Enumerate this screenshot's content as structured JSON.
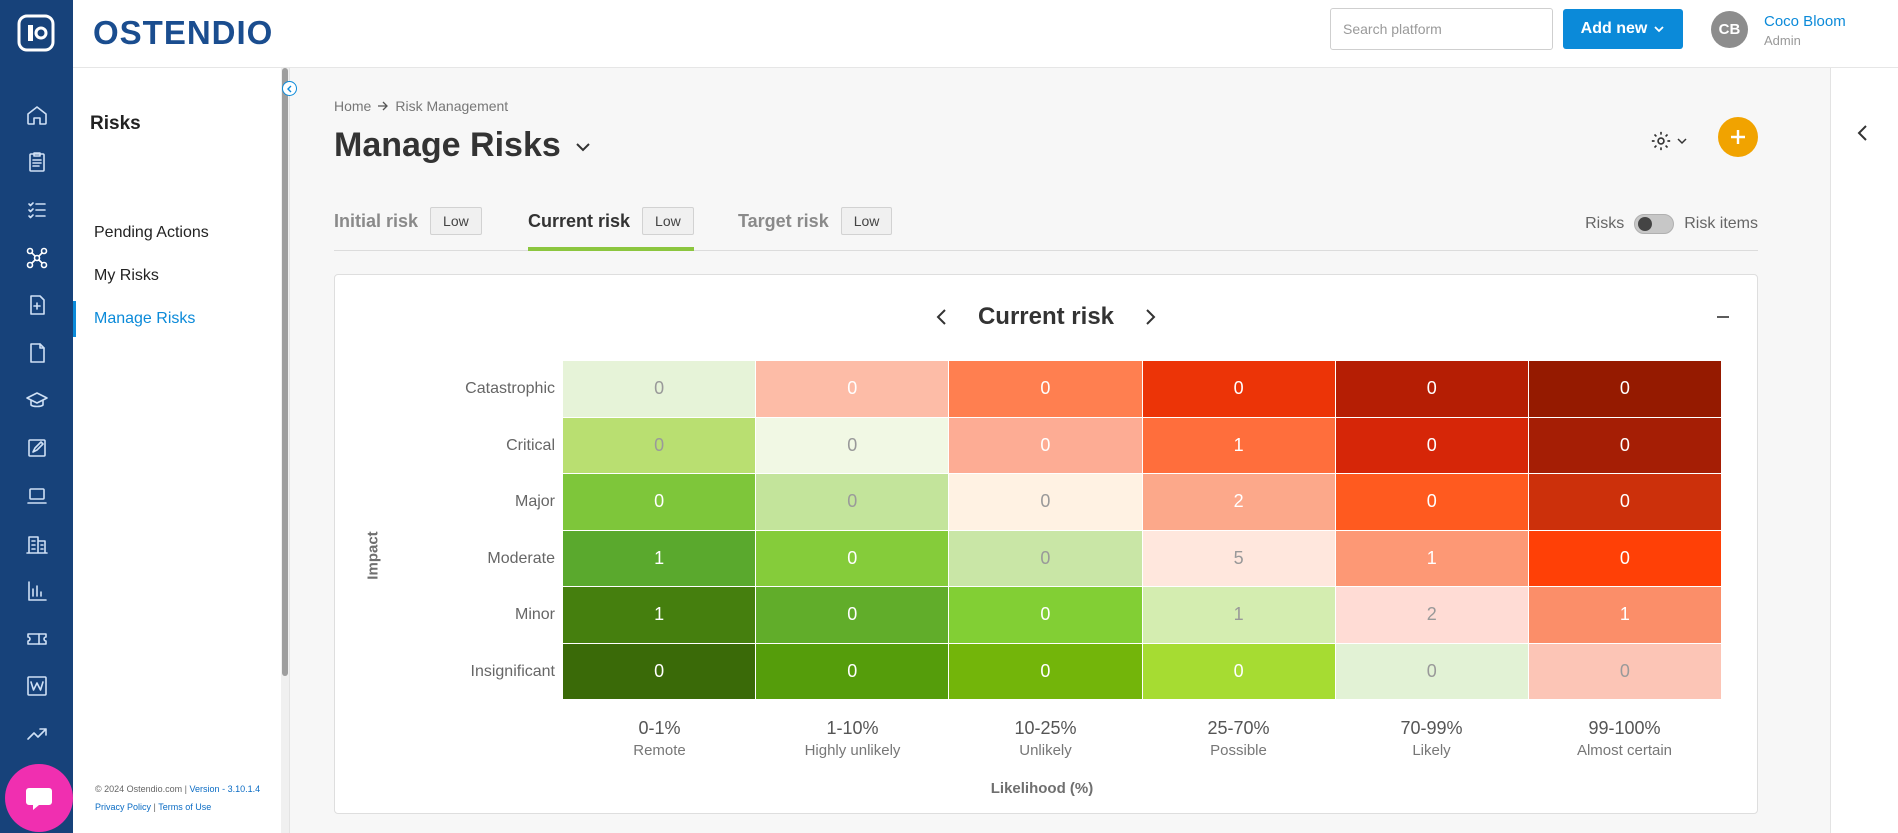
{
  "app": {
    "brand": "OSTENDIO"
  },
  "topbar": {
    "search_placeholder": "Search platform",
    "add_new_label": "Add new",
    "user": {
      "initials": "CB",
      "name": "Coco Bloom",
      "role": "Admin"
    }
  },
  "rail": {
    "icons": [
      "home-icon",
      "clipboard-icon",
      "checklist-icon",
      "risk-network-icon",
      "add-document-icon",
      "document-icon",
      "graduation-cap-icon",
      "edit-note-icon",
      "laptop-icon",
      "building-icon",
      "bar-chart-icon",
      "ticket-icon",
      "wiki-icon",
      "trend-icon"
    ],
    "active": "risk-network-icon"
  },
  "sidebar": {
    "title": "Risks",
    "items": [
      {
        "label": "Pending Actions",
        "active": false
      },
      {
        "label": "My Risks",
        "active": false
      },
      {
        "label": "Manage Risks",
        "active": true
      }
    ],
    "footer": {
      "copyright": "© 2024 Ostendio.com |",
      "version": "Version - 3.10.1.4",
      "privacy": "Privacy Policy",
      "separator": "|",
      "terms": "Terms of Use"
    }
  },
  "main": {
    "breadcrumb": [
      "Home",
      "Risk Management"
    ],
    "title": "Manage Risks",
    "tabs": [
      {
        "label": "Initial risk",
        "badge": "Low",
        "active": false
      },
      {
        "label": "Current risk",
        "badge": "Low",
        "active": true
      },
      {
        "label": "Target risk",
        "badge": "Low",
        "active": false
      }
    ],
    "toggle": {
      "left_label": "Risks",
      "right_label": "Risk items"
    }
  },
  "heatmap": {
    "title": "Current risk",
    "y_title": "Impact",
    "x_title": "Likelihood (%)",
    "rows": [
      "Catastrophic",
      "Critical",
      "Major",
      "Moderate",
      "Minor",
      "Insignificant"
    ],
    "columns": [
      {
        "range": "0-1%",
        "label": "Remote"
      },
      {
        "range": "1-10%",
        "label": "Highly unlikely"
      },
      {
        "range": "10-25%",
        "label": "Unlikely"
      },
      {
        "range": "25-70%",
        "label": "Possible"
      },
      {
        "range": "70-99%",
        "label": "Likely"
      },
      {
        "range": "99-100%",
        "label": "Almost certain"
      }
    ],
    "values": [
      [
        0,
        0,
        0,
        0,
        0,
        0
      ],
      [
        0,
        0,
        0,
        1,
        0,
        0
      ],
      [
        0,
        0,
        0,
        2,
        0,
        0
      ],
      [
        1,
        0,
        0,
        5,
        1,
        0
      ],
      [
        1,
        0,
        0,
        1,
        2,
        1
      ],
      [
        0,
        0,
        0,
        0,
        0,
        0
      ]
    ],
    "colors": [
      [
        "#e6f3d8",
        "#fdbca7",
        "#ff7f50",
        "#ec3407",
        "#b51e04",
        "#951a00"
      ],
      [
        "#b9df71",
        "#f1f8e4",
        "#fdac94",
        "#ff6e3c",
        "#d62608",
        "#a51e05"
      ],
      [
        "#7ec63a",
        "#c3e49b",
        "#fff2e3",
        "#fca88a",
        "#ff5a1f",
        "#cc300b"
      ],
      [
        "#5aa92d",
        "#85cc3a",
        "#c9e6a6",
        "#ffe7dd",
        "#fd9875",
        "#ff4006"
      ],
      [
        "#457f0e",
        "#61ad2a",
        "#82cf34",
        "#d4edb0",
        "#ffdcd5",
        "#fb8e69"
      ],
      [
        "#3a6a08",
        "#559d0b",
        "#73b50a",
        "#a6dc32",
        "#e2f2d5",
        "#fcc5b6"
      ]
    ],
    "text_colors": [
      [
        "#999999",
        "#ffffff",
        "#ffffff",
        "#ffffff",
        "#ffffff",
        "#ffffff"
      ],
      [
        "#9a9a9a",
        "#999999",
        "#ffffff",
        "#ffffff",
        "#ffffff",
        "#ffffff"
      ],
      [
        "#ffffff",
        "#9a9a9a",
        "#999999",
        "#ffffff",
        "#ffffff",
        "#ffffff"
      ],
      [
        "#ffffff",
        "#ffffff",
        "#999999",
        "#999999",
        "#ffffff",
        "#ffffff"
      ],
      [
        "#ffffff",
        "#ffffff",
        "#ffffff",
        "#999999",
        "#999999",
        "#ffffff"
      ],
      [
        "#ffffff",
        "#ffffff",
        "#ffffff",
        "#ffffff",
        "#999999",
        "#9a9a9a"
      ]
    ]
  },
  "colors": {
    "rail": "#17427a",
    "primary": "#0b8ad9",
    "accent_orange": "#f1a300",
    "tab_active": "#8cc63f",
    "chat": "#f02fb0"
  }
}
